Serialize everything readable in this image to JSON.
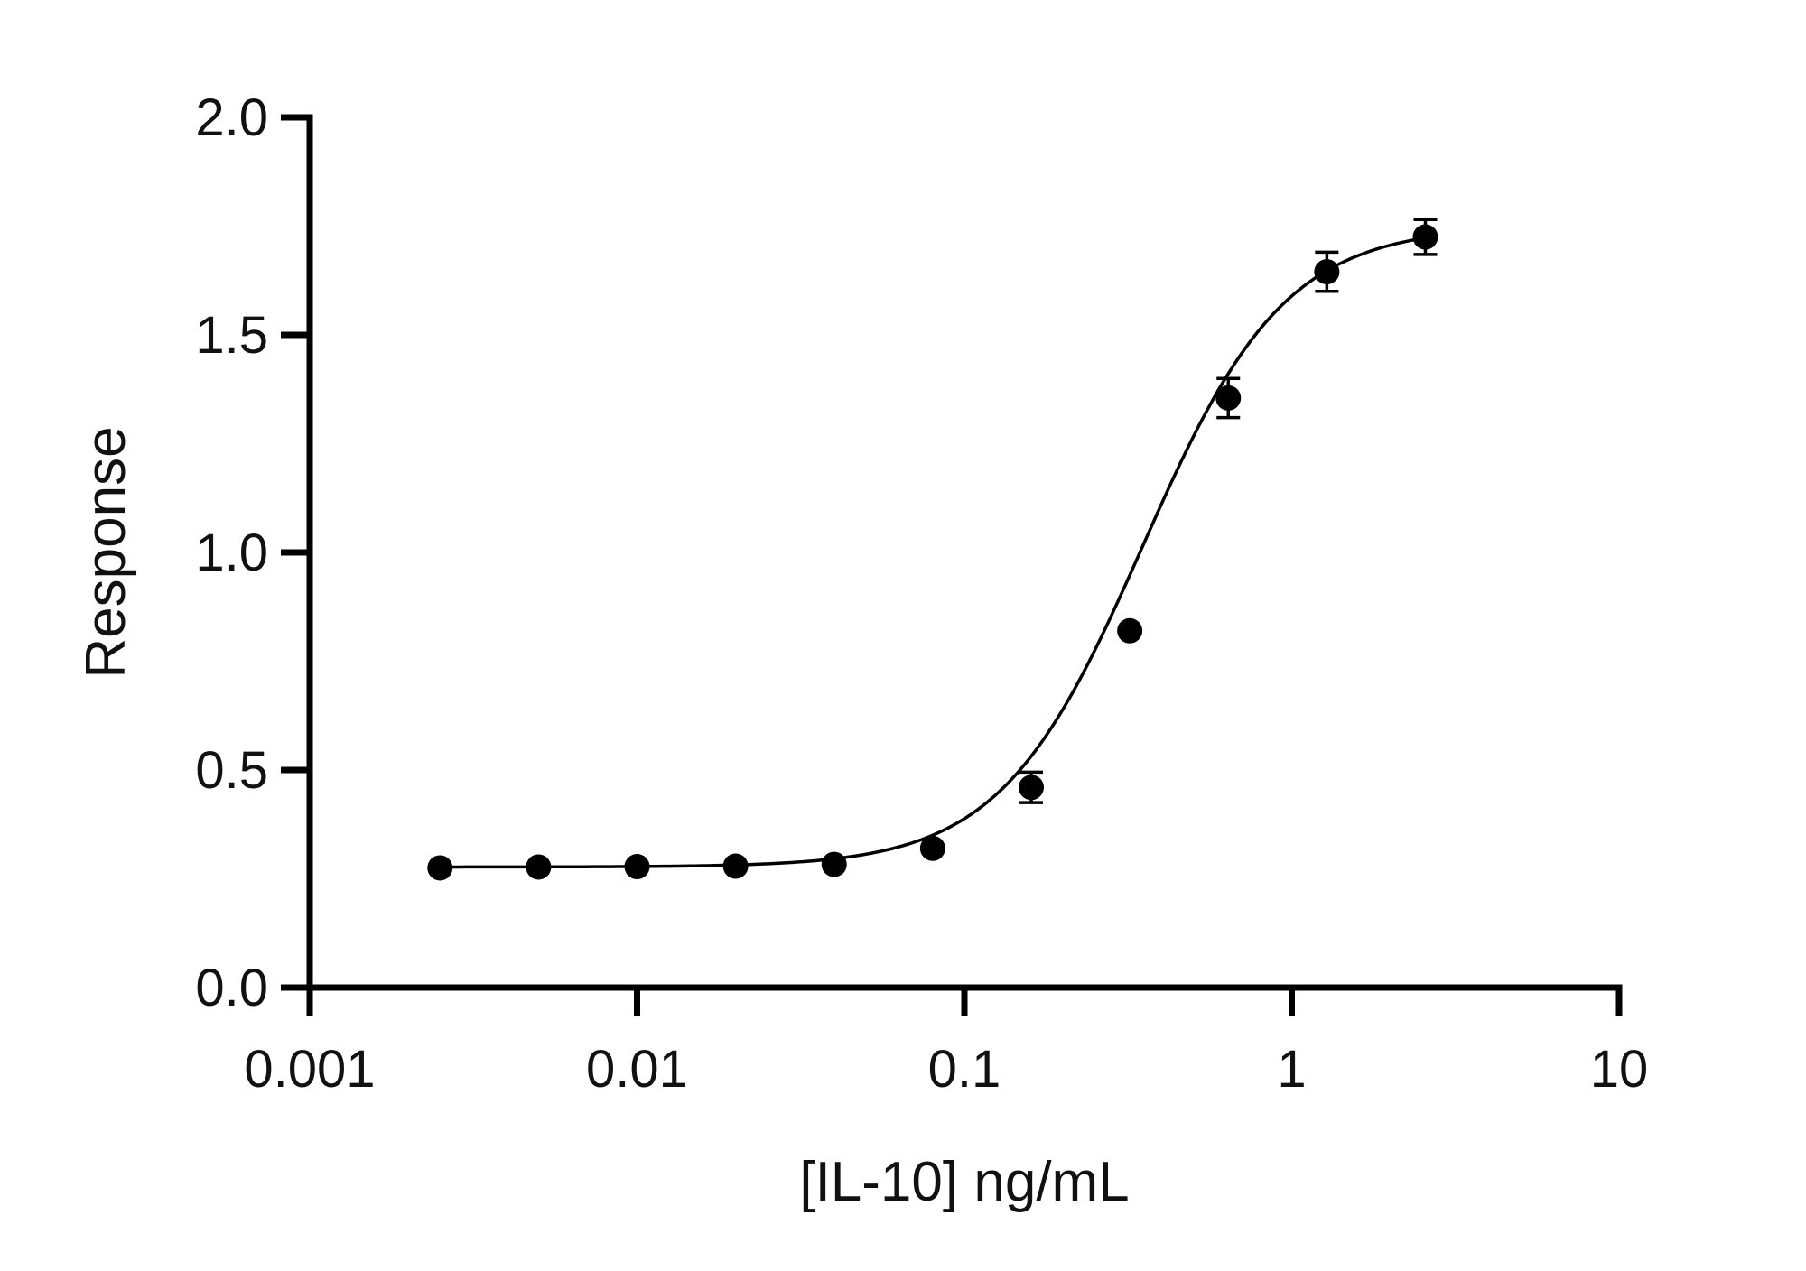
{
  "chart_data": {
    "type": "scatter",
    "title": "",
    "xlabel": "[IL-10] ng/mL",
    "ylabel": "Response",
    "x_scale": "log",
    "xlim": [
      0.001,
      10
    ],
    "ylim": [
      0,
      2
    ],
    "x_ticks": [
      0.001,
      0.01,
      0.1,
      1,
      10
    ],
    "x_tick_labels": [
      "0.001",
      "0.01",
      "0.1",
      "1",
      "10"
    ],
    "y_ticks": [
      0,
      0.5,
      1,
      1.5,
      2
    ],
    "y_tick_labels": [
      "0.0",
      "0.5",
      "1.0",
      "1.5",
      "2.0"
    ],
    "grid": false,
    "legend": "none",
    "series": [
      {
        "x": [
          0.0025,
          0.005,
          0.01,
          0.02,
          0.04,
          0.08,
          0.16,
          0.32,
          0.64,
          1.28,
          2.56
        ],
        "y": [
          0.275,
          0.277,
          0.278,
          0.279,
          0.283,
          0.32,
          0.46,
          0.82,
          1.355,
          1.645,
          1.725
        ],
        "error": [
          0,
          0,
          0,
          0,
          0,
          0,
          0.035,
          0,
          0.045,
          0.045,
          0.04
        ],
        "color": "#000000"
      }
    ],
    "fit_curve": {
      "type": "4PL",
      "bottom": 0.277,
      "top": 1.75,
      "ec50": 0.35,
      "hill": 2.0,
      "color": "#000000"
    }
  }
}
